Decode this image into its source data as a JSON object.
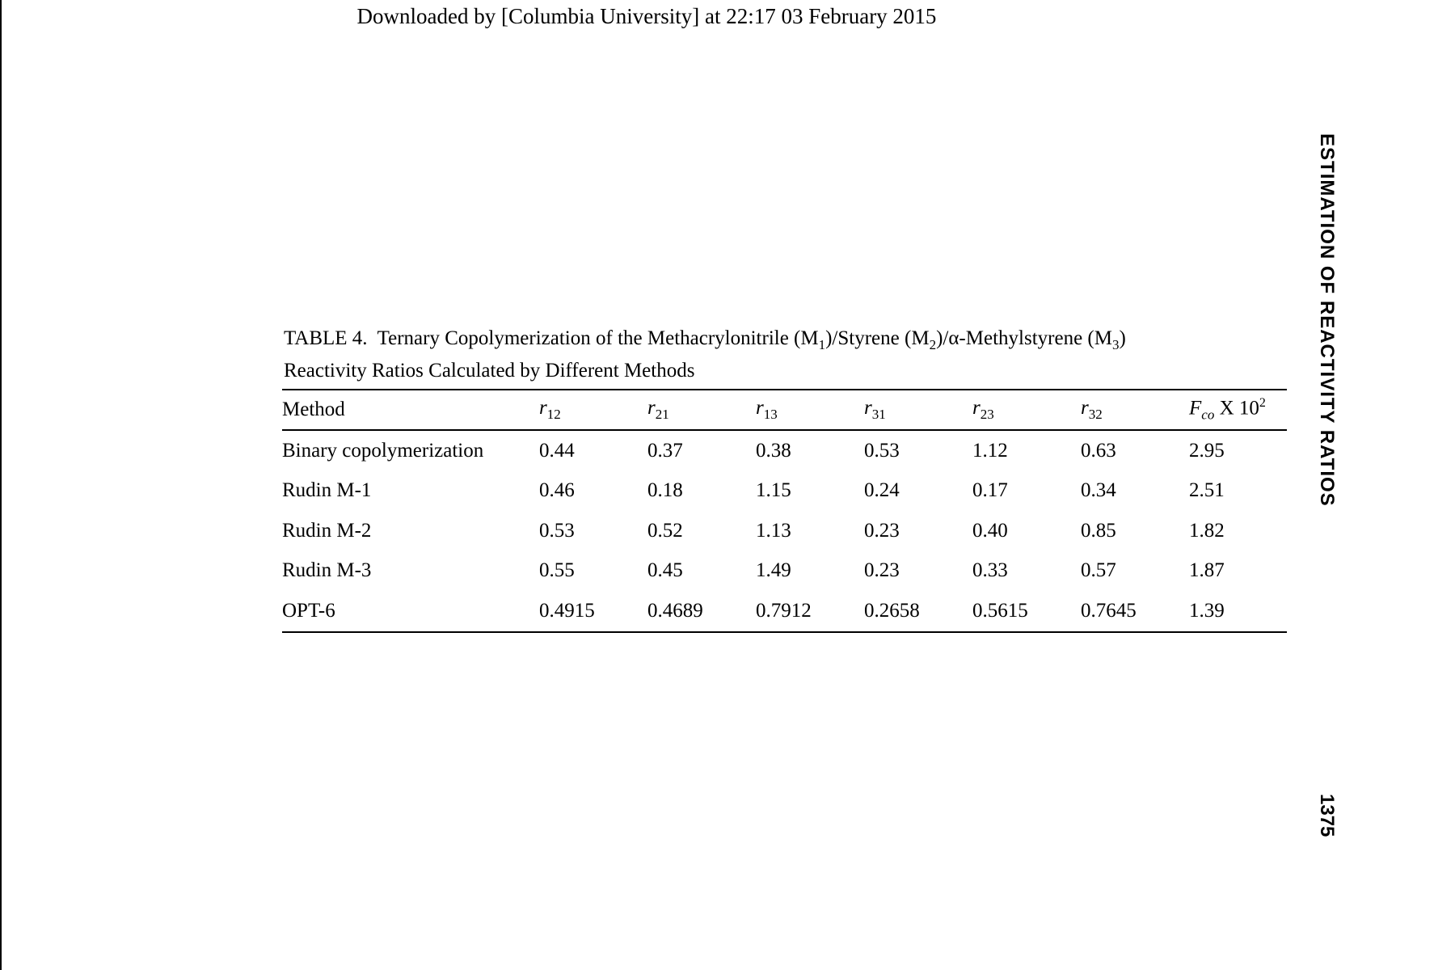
{
  "header": {
    "download_note": "Downloaded by [Columbia University] at 22:17 03 February 2015"
  },
  "running_head": "ESTIMATION OF REACTIVITY RATIOS",
  "page_number": "1375",
  "table": {
    "caption_label": "TABLE 4.",
    "caption_line1_a": "Ternary Copolymerization of the Methacrylonitrile (M",
    "caption_sub1": "1",
    "caption_line1_b": ")/Styrene (M",
    "caption_sub2": "2",
    "caption_line1_c": ")/α-Methylstyrene (M",
    "caption_sub3": "3",
    "caption_line1_d": ")",
    "caption_line2": "Reactivity Ratios Calculated by Different Methods",
    "columns": [
      {
        "main": "Method",
        "sub": ""
      },
      {
        "main": "r",
        "sub": "12"
      },
      {
        "main": "r",
        "sub": "21"
      },
      {
        "main": "r",
        "sub": "13"
      },
      {
        "main": "r",
        "sub": "31"
      },
      {
        "main": "r",
        "sub": "23"
      },
      {
        "main": "r",
        "sub": "32"
      }
    ],
    "last_column": {
      "main": "F",
      "sub": "co",
      "times": " X 10",
      "sup": "2"
    },
    "rows": [
      [
        "Binary copolymerization",
        "0.44",
        "0.37",
        "0.38",
        "0.53",
        "1.12",
        "0.63",
        "2.95"
      ],
      [
        "Rudin M-1",
        "0.46",
        "0.18",
        "1.15",
        "0.24",
        "0.17",
        "0.34",
        "2.51"
      ],
      [
        "Rudin M-2",
        "0.53",
        "0.52",
        "1.13",
        "0.23",
        "0.40",
        "0.85",
        "1.82"
      ],
      [
        "Rudin M-3",
        "0.55",
        "0.45",
        "1.49",
        "0.23",
        "0.33",
        "0.57",
        "1.87"
      ],
      [
        "OPT-6",
        "0.4915",
        "0.4689",
        "0.7912",
        "0.2658",
        "0.5615",
        "0.7645",
        "1.39"
      ]
    ]
  }
}
